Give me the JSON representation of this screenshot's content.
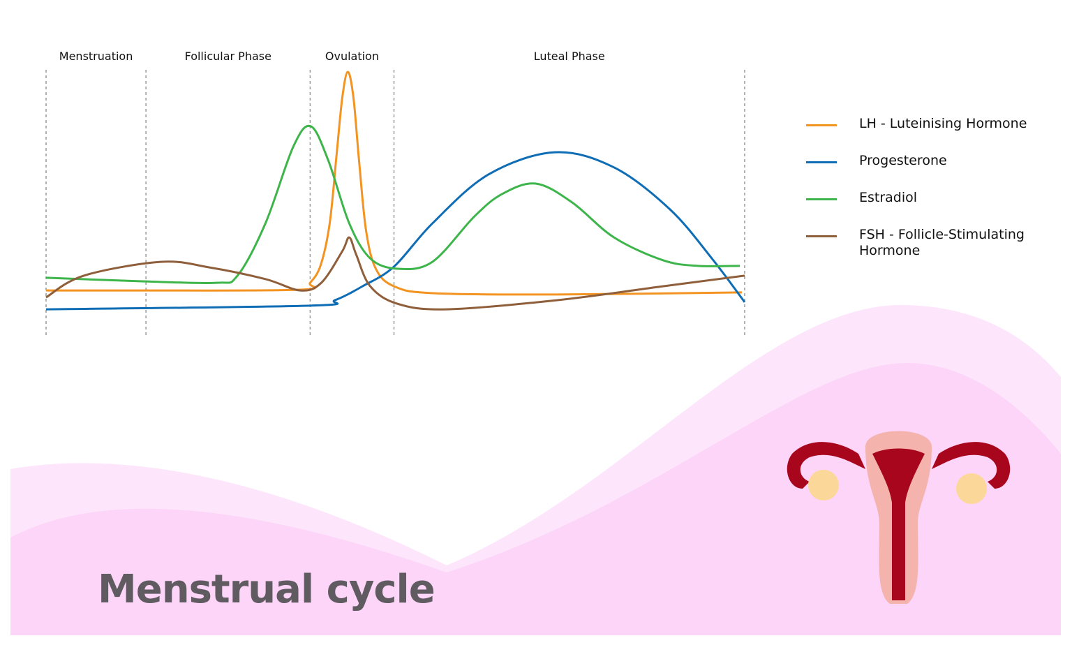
{
  "chart_data": {
    "type": "line",
    "phases": [
      "Menstruation",
      "Follicular Phase",
      "Ovulation",
      "Luteal Phase"
    ],
    "boundaries": [
      0,
      14.3,
      37.8,
      49.8,
      100
    ],
    "xlim": [
      0,
      100
    ],
    "ylim": [
      0,
      100
    ],
    "series": [
      {
        "name": "LH - Luteinising Hormone",
        "color": "#f39322",
        "x": [
          0,
          13.4,
          36.4,
          37.8,
          39.3,
          40.6,
          41.6,
          42.4,
          43.2,
          44.0,
          44.8,
          45.8,
          47.2,
          49.8,
          55.3,
          73.3,
          99.6
        ],
        "values": [
          16.8,
          16.8,
          17.1,
          19.7,
          26.3,
          42.1,
          68.4,
          89.5,
          99.2,
          89.5,
          65.8,
          39.5,
          25.0,
          18.4,
          15.8,
          15.3,
          16.1
        ]
      },
      {
        "name": "Progesterone",
        "color": "#0f6db5",
        "x": [
          0,
          37.8,
          41.4,
          45.3,
          49.8,
          55.3,
          63.3,
          72.8,
          81.3,
          89.3,
          95.3,
          100
        ],
        "values": [
          9.7,
          11.1,
          13.2,
          18.4,
          25.8,
          42.1,
          60.5,
          68.9,
          63.2,
          47.4,
          28.9,
          12.4
        ]
      },
      {
        "name": "Estradiol",
        "color": "#3db54a",
        "x": [
          0,
          13.4,
          24.4,
          27.4,
          31.4,
          35.4,
          37.9,
          40.4,
          43.4,
          46.4,
          50.3,
          55.3,
          61.3,
          65.3,
          70.1,
          75.3,
          81.3,
          88.3,
          93.3,
          99.3
        ],
        "values": [
          21.6,
          20.3,
          19.7,
          22.4,
          42.1,
          71.1,
          78.7,
          65.8,
          42.1,
          28.9,
          25.0,
          27.6,
          44.7,
          53.2,
          57.1,
          50.0,
          36.8,
          28.2,
          26.1,
          26.1
        ]
      },
      {
        "name": "FSH - Follicle-Stimulating Hormone",
        "color": "#8f5e3a",
        "x": [
          0,
          5.4,
          16.4,
          23.4,
          31.4,
          36.4,
          39.4,
          42.4,
          43.4,
          44.4,
          46.4,
          50.3,
          57.3,
          73.3,
          88.3,
          100
        ],
        "values": [
          14.2,
          22.4,
          27.6,
          25.5,
          21.1,
          16.8,
          19.7,
          31.6,
          36.8,
          30.3,
          18.4,
          11.8,
          9.7,
          13.2,
          18.4,
          22.4
        ]
      }
    ],
    "caption": "Menstrual cycle"
  }
}
